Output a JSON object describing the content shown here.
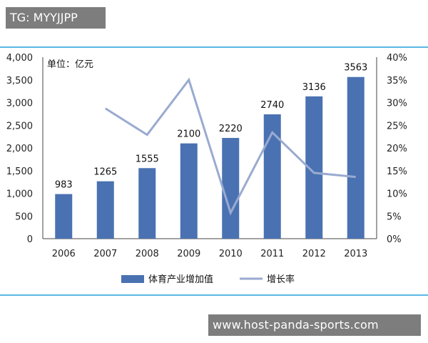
{
  "overlays": {
    "tag": "TG: MYYJJPP",
    "url": "www.host-panda-sports.com"
  },
  "colors": {
    "bar": "#4a72b2",
    "line": "#9aaad0",
    "frame": "#5bb8e6",
    "axis": "#444444"
  },
  "chart_data": {
    "type": "bar",
    "unit_label": "单位：亿元",
    "categories": [
      "2006",
      "2007",
      "2008",
      "2009",
      "2010",
      "2011",
      "2012",
      "2013"
    ],
    "series": [
      {
        "name": "体育产业增加值",
        "kind": "bar",
        "axis": "left",
        "values": [
          983,
          1265,
          1555,
          2100,
          2220,
          2740,
          3136,
          3563
        ],
        "data_labels": [
          "983",
          "1265",
          "1555",
          "2100",
          "2220",
          "2740",
          "3136",
          "3563"
        ]
      },
      {
        "name": "增长率",
        "kind": "line",
        "axis": "right",
        "values": [
          null,
          28.7,
          22.9,
          35.0,
          5.7,
          23.4,
          14.5,
          13.6
        ]
      }
    ],
    "y_left": {
      "ylim": [
        0,
        4000
      ],
      "ticks": [
        0,
        500,
        1000,
        1500,
        2000,
        2500,
        3000,
        3500,
        4000
      ],
      "tick_labels": [
        "0",
        "500",
        "1,000",
        "1,500",
        "2,000",
        "2,500",
        "3,000",
        "3,500",
        "4,000"
      ]
    },
    "y_right": {
      "ylim": [
        0,
        40
      ],
      "ticks": [
        0,
        5,
        10,
        15,
        20,
        25,
        30,
        35,
        40
      ],
      "tick_labels": [
        "0%",
        "5%",
        "10%",
        "15%",
        "20%",
        "25%",
        "30%",
        "35%",
        "40%"
      ]
    },
    "legend": {
      "placement": "bottom-center",
      "items": [
        "体育产业增加值",
        "增长率"
      ]
    },
    "grid": false
  }
}
